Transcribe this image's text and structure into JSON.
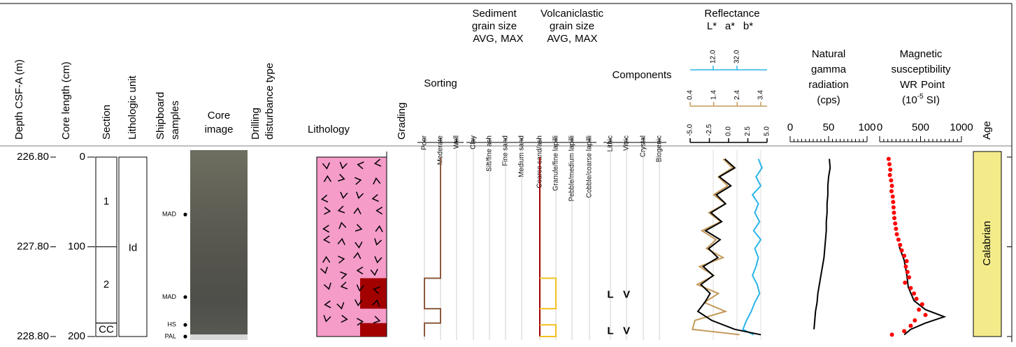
{
  "header": {
    "depth": "Depth CSF-A (m)",
    "core_length": "Core length (cm)",
    "section": "Section",
    "unit": "Lithologic unit",
    "samples": [
      "Shipboard",
      "samples"
    ],
    "core_image": [
      "Core",
      "image"
    ],
    "disturbance": [
      "Drilling",
      "disturbance type"
    ],
    "lithology": "Lithology",
    "grading": "Grading",
    "sorting": "Sorting",
    "sorting_classes": [
      "Poor",
      "Moderate",
      "Well"
    ],
    "sediment_grain_size": {
      "title": [
        "Sediment",
        "grain size"
      ],
      "avg": "AVG,",
      "max": "MAX"
    },
    "volcaniclastic_grain_size": {
      "title": [
        "Volcaniclastic",
        "grain size"
      ],
      "avg": "AVG,",
      "max": "MAX"
    },
    "grain_classes": [
      "Clay",
      "Silt/fine ash",
      "Fine sand",
      "Medium sand",
      "Coarse sand/ash",
      "Granule/fine lapilli",
      "Pebble/medium lapilli",
      "Cobble/coarse lapilli"
    ],
    "components": "Components",
    "component_classes": [
      "Lithic",
      "Vitric",
      "Crystal",
      "Biogenic"
    ],
    "reflectance": "Reflectance",
    "ngr": [
      "Natural",
      "gamma",
      "radiation",
      "(cps)"
    ],
    "ms": [
      "Magnetic",
      "susceptibility"
    ],
    "ms_wr": "WR",
    "ms_point": "Point",
    "ms_unit": [
      "(10",
      "-5",
      " SI)"
    ],
    "age": "Age"
  },
  "depth_ticks": [
    {
      "value": 226.8,
      "label": "226.80"
    },
    {
      "value": 227.8,
      "label": "227.80"
    },
    {
      "value": 228.8,
      "label": "228.80"
    }
  ],
  "core_length_ticks": [
    0,
    100,
    200
  ],
  "sections": [
    {
      "label": "1",
      "top": 0,
      "bottom": 100
    },
    {
      "label": "2",
      "top": 100,
      "bottom": 185
    },
    {
      "label": "CC",
      "top": 185,
      "bottom": 200
    }
  ],
  "unit": {
    "label": "Id",
    "top": 0,
    "bottom": 200
  },
  "samples": [
    {
      "label": "MAD",
      "depth": 64
    },
    {
      "label": "MAD",
      "depth": 156
    },
    {
      "label": "HS",
      "depth": 187
    },
    {
      "label": "PAL",
      "depth": 200
    }
  ],
  "lithology": {
    "primary": {
      "top": 0,
      "bottom": 200,
      "color": "#f59cc9"
    },
    "secondary": [
      {
        "top": 135,
        "bottom": 169,
        "color": "#a30000"
      },
      {
        "top": 185,
        "bottom": 200,
        "color": "#a30000"
      }
    ]
  },
  "sorting": {
    "color": "#8b5a3c",
    "intervals": [
      {
        "top": 0,
        "bottom": 135,
        "class": 1
      },
      {
        "top": 135,
        "bottom": 169,
        "class": 0
      },
      {
        "top": 169,
        "bottom": 185,
        "class": 1
      },
      {
        "top": 185,
        "bottom": 200,
        "class": 0
      }
    ]
  },
  "grain_size": {
    "avg_color": "#a30000",
    "max_color": "#f2c020",
    "avg": [
      {
        "top": 0,
        "bottom": 200,
        "class": 4
      }
    ],
    "max": [
      {
        "top": 135,
        "bottom": 169,
        "class": 5
      },
      {
        "top": 187,
        "bottom": 200,
        "class": 5
      }
    ]
  },
  "components": [
    {
      "top": 135,
      "bottom": 169,
      "letters": [
        "L",
        "V"
      ]
    },
    {
      "top": 185,
      "bottom": 200,
      "letters": [
        "L",
        "V"
      ]
    }
  ],
  "reflectance": {
    "depth": [
      226.82,
      226.92,
      227.02,
      227.12,
      227.22,
      227.32,
      227.42,
      227.52,
      227.62,
      227.72,
      227.82,
      227.92,
      228.02,
      228.12,
      228.22,
      228.32,
      228.42,
      228.52,
      228.62,
      228.72,
      228.78
    ],
    "series": [
      {
        "name": "L*",
        "color": "#29b5e8",
        "xlim": [
          -7.4,
          57.3
        ],
        "ticks": [
          {
            "value": 12,
            "label": "12.0"
          },
          {
            "value": 32,
            "label": "32.0"
          }
        ],
        "values": [
          50,
          53,
          48,
          52,
          45,
          50,
          47,
          51,
          46,
          52,
          47,
          50,
          48,
          45,
          49,
          51,
          47,
          44,
          40,
          37,
          46
        ]
      },
      {
        "name": "a*",
        "color": "#c49a5a",
        "xlim": [
          0.4,
          3.67
        ],
        "ticks": [
          0.4,
          1.4,
          2.4,
          3.4
        ],
        "values": [
          1.8,
          2.2,
          1.6,
          2.0,
          1.4,
          1.9,
          1.2,
          1.7,
          0.9,
          1.5,
          1.1,
          1.8,
          0.8,
          1.4,
          0.7,
          1.6,
          1.0,
          1.9,
          0.6,
          0.5,
          2.5
        ]
      },
      {
        "name": "b*",
        "color": "#000000",
        "xlim": [
          -5,
          5
        ],
        "ticks": [
          {
            "value": -5,
            "label": "-5.0"
          },
          -2.5,
          {
            "value": 0,
            "label": "0.0"
          },
          2.5,
          {
            "value": 5,
            "label": "5.0"
          }
        ],
        "values": [
          -0.5,
          0.8,
          -1.2,
          0.3,
          -1.6,
          -0.4,
          -2.3,
          -0.9,
          -3.0,
          -1.1,
          -2.6,
          -1.4,
          -3.3,
          -2.0,
          -3.6,
          -2.4,
          -3.1,
          -4.0,
          -2.2,
          0.8,
          4.2
        ]
      }
    ]
  },
  "ngr": {
    "xlim": [
      0,
      100
    ],
    "ticks": [
      0,
      50,
      100
    ],
    "depth": [
      226.82,
      226.92,
      227.02,
      227.12,
      227.22,
      227.32,
      227.42,
      227.52,
      227.62,
      227.72,
      227.82,
      227.92,
      228.02,
      228.12,
      228.22,
      228.32,
      228.42,
      228.52,
      228.62,
      228.72
    ],
    "values": [
      51,
      52,
      50,
      49,
      49,
      48,
      48,
      47,
      47,
      46,
      45,
      44,
      42,
      40,
      38,
      36,
      35,
      33,
      32,
      31
    ]
  },
  "ms": {
    "xlim": [
      0,
      1000
    ],
    "ticks": [
      0,
      500,
      1000
    ],
    "point_color": "#ff0000",
    "point": {
      "depth": [
        226.82,
        226.88,
        226.94,
        227.0,
        227.06,
        227.12,
        227.18,
        227.24,
        227.3,
        227.36,
        227.42,
        227.48,
        227.54,
        227.6,
        227.66,
        227.72,
        227.78,
        227.84,
        227.9,
        227.96,
        228.02,
        228.08,
        228.14,
        228.2,
        228.26,
        228.32,
        228.38,
        228.44,
        228.5,
        228.56,
        228.62,
        228.68,
        228.74,
        228.78
      ],
      "values": [
        110,
        120,
        130,
        125,
        140,
        150,
        145,
        160,
        165,
        170,
        175,
        180,
        190,
        200,
        210,
        230,
        250,
        270,
        300,
        330,
        320,
        340,
        360,
        310,
        380,
        420,
        450,
        520,
        480,
        560,
        430,
        380,
        300,
        150
      ]
    },
    "wr": {
      "depth": [
        227.8,
        227.95,
        228.1,
        228.25,
        228.4,
        228.5,
        228.58,
        228.65,
        228.72,
        228.78
      ],
      "values": [
        240,
        300,
        330,
        350,
        420,
        560,
        790,
        560,
        380,
        300
      ]
    }
  },
  "age": {
    "label": "Calabrian",
    "color": "#f3eb8a"
  }
}
